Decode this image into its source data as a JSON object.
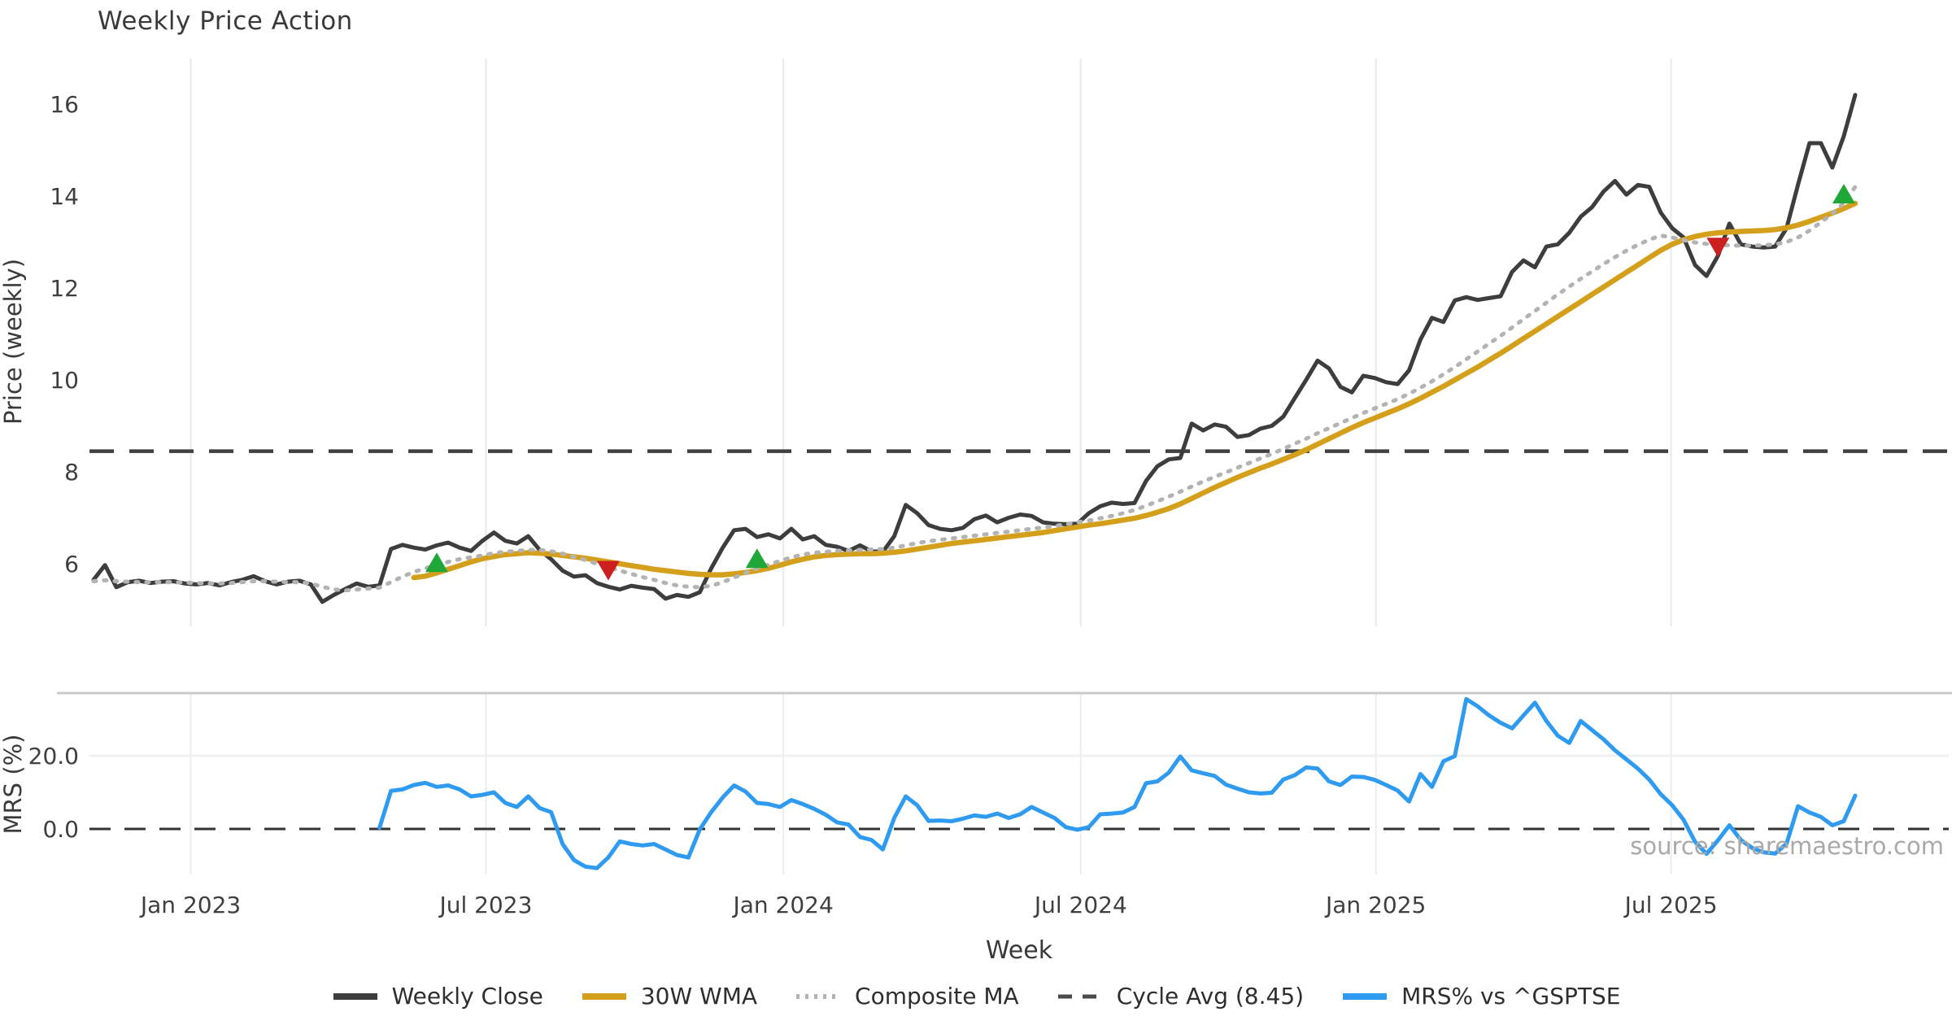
{
  "title": "Weekly Price Action",
  "source_note": "source: sharemaestro.com",
  "price_panel": {
    "ylabel": "Price (weekly)",
    "yticks": [
      6,
      8,
      10,
      12,
      14,
      16
    ],
    "ytick_labels": [
      "6",
      "8",
      "10",
      "12",
      "14",
      "16"
    ]
  },
  "mrs_panel": {
    "ylabel": "MRS (%)",
    "yticks": [
      0,
      20
    ],
    "ytick_labels": [
      "0.0",
      "20.0"
    ]
  },
  "x_axis": {
    "label": "Week",
    "ticks": [
      {
        "label": "Jan 2023",
        "week": 8.5
      },
      {
        "label": "Jul 2023",
        "week": 34.3
      },
      {
        "label": "Jan 2024",
        "week": 60.3
      },
      {
        "label": "Jul 2024",
        "week": 86.3
      },
      {
        "label": "Jan 2025",
        "week": 112.1
      },
      {
        "label": "Jul 2025",
        "week": 137.9
      }
    ]
  },
  "legend": [
    {
      "label": "Weekly Close",
      "swatch": "solid",
      "color": "#3d3d3d"
    },
    {
      "label": "30W WMA",
      "swatch": "solid",
      "color": "#d4a01c"
    },
    {
      "label": "Composite MA",
      "swatch": "dotted",
      "color": "#b3b3b3"
    },
    {
      "label": "Cycle Avg (8.45)",
      "swatch": "dashed",
      "color": "#4a4a4a"
    },
    {
      "label": "MRS% vs ^GSPTSE",
      "swatch": "solid",
      "color": "#2e9bf0"
    }
  ],
  "chart_data": {
    "type": "line",
    "x_unit": "week_index",
    "weeks_total": 155,
    "price_ylim": [
      4.55,
      17.0
    ],
    "mrs_ylim": [
      -14,
      37
    ],
    "cycle_avg": 8.45,
    "mrs_zero_line": 0,
    "colors": {
      "weekly_close": "#3d3d3d",
      "wma30": "#d4a01c",
      "composite": "#b3b3b3",
      "cycle_avg": "#404040",
      "mrs": "#2e9bf0",
      "buy_marker": "#1fa738",
      "sell_marker": "#cc2020",
      "gridline": "#ededed",
      "separator": "#c9c9c9"
    },
    "series": [
      {
        "name": "Weekly Close",
        "panel": "price",
        "start_week": 0,
        "values": [
          5.65,
          5.97,
          5.49,
          5.6,
          5.63,
          5.58,
          5.61,
          5.62,
          5.57,
          5.55,
          5.58,
          5.53,
          5.6,
          5.65,
          5.73,
          5.62,
          5.55,
          5.61,
          5.63,
          5.55,
          5.17,
          5.32,
          5.45,
          5.57,
          5.5,
          5.53,
          6.32,
          6.41,
          6.35,
          6.31,
          6.4,
          6.46,
          6.35,
          6.28,
          6.5,
          6.68,
          6.5,
          6.44,
          6.6,
          6.3,
          6.1,
          5.85,
          5.72,
          5.75,
          5.58,
          5.5,
          5.44,
          5.52,
          5.48,
          5.45,
          5.24,
          5.32,
          5.28,
          5.38,
          5.9,
          6.35,
          6.73,
          6.76,
          6.58,
          6.64,
          6.55,
          6.76,
          6.53,
          6.6,
          6.41,
          6.37,
          6.28,
          6.4,
          6.27,
          6.26,
          6.6,
          7.28,
          7.1,
          6.84,
          6.76,
          6.73,
          6.78,
          6.97,
          7.05,
          6.9,
          7.0,
          7.07,
          7.04,
          6.9,
          6.87,
          6.86,
          6.87,
          7.1,
          7.25,
          7.33,
          7.3,
          7.32,
          7.8,
          8.12,
          8.27,
          8.3,
          9.05,
          8.9,
          9.03,
          8.98,
          8.76,
          8.8,
          8.94,
          9.0,
          9.2,
          9.6,
          10.0,
          10.42,
          10.25,
          9.85,
          9.73,
          10.09,
          10.04,
          9.95,
          9.91,
          10.21,
          10.88,
          11.35,
          11.26,
          11.73,
          11.8,
          11.74,
          11.78,
          11.82,
          12.35,
          12.6,
          12.45,
          12.9,
          12.95,
          13.2,
          13.55,
          13.76,
          14.1,
          14.33,
          14.03,
          14.24,
          14.2,
          13.64,
          13.3,
          13.1,
          12.5,
          12.26,
          12.7,
          13.4,
          12.95,
          12.9,
          12.88,
          12.9,
          13.3,
          14.25,
          15.15,
          15.15,
          14.62,
          15.3,
          16.2
        ]
      },
      {
        "name": "30W WMA",
        "panel": "price",
        "start_week": 28,
        "values": [
          5.7,
          5.73,
          5.8,
          5.88,
          5.96,
          6.04,
          6.11,
          6.16,
          6.2,
          6.22,
          6.24,
          6.23,
          6.21,
          6.18,
          6.15,
          6.12,
          6.08,
          6.04,
          6.0,
          5.96,
          5.92,
          5.88,
          5.85,
          5.82,
          5.79,
          5.77,
          5.76,
          5.76,
          5.78,
          5.81,
          5.85,
          5.9,
          5.97,
          6.04,
          6.1,
          6.15,
          6.18,
          6.2,
          6.21,
          6.22,
          6.22,
          6.23,
          6.25,
          6.28,
          6.32,
          6.36,
          6.4,
          6.44,
          6.47,
          6.5,
          6.53,
          6.56,
          6.59,
          6.62,
          6.65,
          6.68,
          6.72,
          6.76,
          6.8,
          6.84,
          6.87,
          6.91,
          6.95,
          6.99,
          7.05,
          7.12,
          7.2,
          7.3,
          7.42,
          7.54,
          7.66,
          7.77,
          7.88,
          7.98,
          8.08,
          8.17,
          8.27,
          8.37,
          8.48,
          8.6,
          8.72,
          8.84,
          8.96,
          9.07,
          9.17,
          9.27,
          9.37,
          9.48,
          9.6,
          9.73,
          9.86,
          10.0,
          10.14,
          10.28,
          10.43,
          10.58,
          10.74,
          10.9,
          11.06,
          11.22,
          11.38,
          11.54,
          11.7,
          11.86,
          12.02,
          12.18,
          12.34,
          12.5,
          12.66,
          12.82,
          12.95,
          13.05,
          13.12,
          13.17,
          13.2,
          13.22,
          13.23,
          13.24,
          13.25,
          13.27,
          13.31,
          13.37,
          13.45,
          13.54,
          13.63,
          13.73,
          13.84
        ]
      },
      {
        "name": "Composite MA",
        "panel": "price",
        "start_week": 0,
        "values": [
          5.62,
          5.64,
          5.62,
          5.61,
          5.6,
          5.6,
          5.6,
          5.6,
          5.59,
          5.58,
          5.57,
          5.57,
          5.58,
          5.6,
          5.62,
          5.62,
          5.61,
          5.6,
          5.6,
          5.57,
          5.5,
          5.44,
          5.42,
          5.44,
          5.46,
          5.48,
          5.6,
          5.72,
          5.82,
          5.9,
          5.97,
          6.04,
          6.1,
          6.14,
          6.18,
          6.23,
          6.26,
          6.28,
          6.3,
          6.3,
          6.27,
          6.22,
          6.15,
          6.08,
          6.0,
          5.93,
          5.85,
          5.78,
          5.71,
          5.65,
          5.58,
          5.53,
          5.5,
          5.49,
          5.52,
          5.6,
          5.7,
          5.8,
          5.9,
          5.98,
          6.06,
          6.14,
          6.2,
          6.24,
          6.26,
          6.28,
          6.29,
          6.3,
          6.31,
          6.32,
          6.35,
          6.4,
          6.45,
          6.49,
          6.52,
          6.55,
          6.58,
          6.61,
          6.64,
          6.67,
          6.7,
          6.73,
          6.76,
          6.79,
          6.82,
          6.86,
          6.9,
          6.94,
          6.99,
          7.04,
          7.1,
          7.17,
          7.26,
          7.36,
          7.46,
          7.57,
          7.68,
          7.79,
          7.89,
          7.99,
          8.09,
          8.19,
          8.29,
          8.39,
          8.5,
          8.61,
          8.72,
          8.84,
          8.95,
          9.06,
          9.17,
          9.28,
          9.38,
          9.48,
          9.58,
          9.7,
          9.83,
          9.97,
          10.12,
          10.28,
          10.45,
          10.62,
          10.79,
          10.96,
          11.14,
          11.32,
          11.5,
          11.68,
          11.86,
          12.03,
          12.2,
          12.36,
          12.52,
          12.67,
          12.81,
          12.94,
          13.05,
          13.14,
          13.1,
          13.04,
          12.99,
          12.96,
          12.94,
          12.93,
          12.92,
          12.92,
          12.93,
          12.95,
          13.0,
          13.1,
          13.25,
          13.43,
          13.62,
          13.85,
          14.2
        ]
      },
      {
        "name": "MRS% vs ^GSPTSE",
        "panel": "mrs",
        "start_week": 25,
        "values": [
          0.3,
          10.4,
          10.8,
          12.0,
          12.6,
          11.5,
          11.9,
          10.8,
          8.9,
          9.3,
          10.0,
          7.1,
          6.0,
          8.9,
          5.7,
          4.6,
          -4.1,
          -8.5,
          -10.3,
          -10.7,
          -7.8,
          -3.4,
          -4.1,
          -4.5,
          -4.1,
          -5.6,
          -7.1,
          -7.8,
          -0.1,
          4.6,
          8.6,
          11.9,
          10.2,
          7.1,
          6.8,
          6.0,
          7.9,
          6.8,
          5.5,
          3.9,
          1.8,
          1.2,
          -2.2,
          -3.0,
          -5.6,
          3.0,
          8.9,
          6.5,
          2.2,
          2.3,
          2.1,
          2.8,
          3.7,
          3.3,
          4.2,
          3.0,
          4.0,
          6.0,
          4.5,
          3.0,
          0.5,
          -0.2,
          0.5,
          4.0,
          4.2,
          4.5,
          6.0,
          12.5,
          13.0,
          15.4,
          19.8,
          16.0,
          15.2,
          14.5,
          12.1,
          11.0,
          10.0,
          9.7,
          9.9,
          13.5,
          14.7,
          16.8,
          16.5,
          13.0,
          12.0,
          14.3,
          14.2,
          13.4,
          12.0,
          10.5,
          7.5,
          15.0,
          11.5,
          18.5,
          19.9,
          35.5,
          33.5,
          31.0,
          29.0,
          27.5,
          31.0,
          34.5,
          29.5,
          25.5,
          23.5,
          29.5,
          27.0,
          24.5,
          21.5,
          19.0,
          16.5,
          13.5,
          9.5,
          6.5,
          2.5,
          -3.5,
          -6.8,
          -3.1,
          1.0,
          -3.0,
          -5.2,
          -6.4,
          -6.7,
          -4.0,
          6.2,
          4.5,
          3.3,
          1.0,
          2.1,
          9.1
        ]
      }
    ],
    "markers": {
      "buy": [
        {
          "week": 30,
          "value": 6.03
        },
        {
          "week": 58,
          "value": 6.12
        },
        {
          "week": 153,
          "value": 14.05
        }
      ],
      "sell": [
        {
          "week": 45,
          "value": 5.85
        },
        {
          "week": 142,
          "value": 12.88
        }
      ]
    }
  }
}
